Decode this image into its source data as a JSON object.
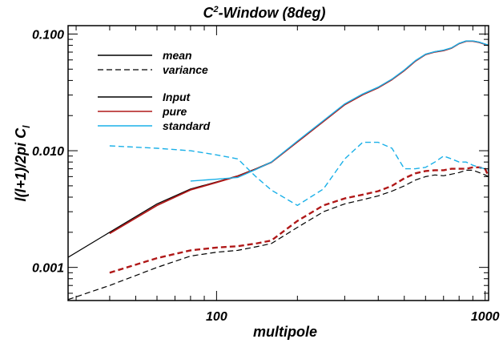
{
  "chart_data": {
    "type": "line",
    "title_prefix": "C",
    "title_sup": "2",
    "title_suffix": "-Window (8deg)",
    "xlabel": "multipole",
    "ylabel_main": "l(l+1)/2pi C",
    "ylabel_sub": "l",
    "x_scale": "log",
    "y_scale": "log",
    "xlim": [
      28,
      1030
    ],
    "ylim": [
      0.00052,
      0.118
    ],
    "x_ticks": [
      {
        "v": 100,
        "label": "100"
      },
      {
        "v": 1000,
        "label": "1000"
      }
    ],
    "y_ticks": [
      {
        "v": 0.001,
        "label": "0.001"
      },
      {
        "v": 0.01,
        "label": "0.010"
      },
      {
        "v": 0.1,
        "label": "0.100"
      }
    ],
    "legend": {
      "position": "top-left",
      "entries": [
        {
          "label": "mean",
          "color": "#000000",
          "dash": "solid"
        },
        {
          "label": "variance",
          "color": "#000000",
          "dash": "dashed"
        },
        {
          "label": "Input",
          "color": "#000000",
          "dash": "solid"
        },
        {
          "label": "pure",
          "color": "#b01818",
          "dash": "solid"
        },
        {
          "label": "standard",
          "color": "#1ab0e8",
          "dash": "solid"
        }
      ]
    },
    "series": [
      {
        "name": "Input",
        "style": "mean",
        "color": "#000000",
        "dash": "solid",
        "width": 1.2,
        "x": [
          28,
          40,
          60,
          80,
          100,
          120,
          140,
          160,
          200,
          250,
          300,
          350,
          400,
          450,
          500,
          550,
          600,
          650,
          700,
          750,
          800,
          850,
          900,
          950,
          1030
        ],
        "y": [
          0.00122,
          0.002,
          0.0035,
          0.0047,
          0.0054,
          0.0061,
          0.007,
          0.008,
          0.012,
          0.018,
          0.025,
          0.0305,
          0.035,
          0.041,
          0.049,
          0.059,
          0.067,
          0.0705,
          0.0725,
          0.076,
          0.083,
          0.087,
          0.087,
          0.085,
          0.08
        ]
      },
      {
        "name": "pure",
        "style": "mean",
        "color": "#b01818",
        "dash": "solid",
        "width": 1.8,
        "x": [
          40,
          60,
          80,
          100,
          120,
          140,
          160,
          200,
          250,
          300,
          350,
          400,
          450,
          500,
          550,
          600,
          650,
          700,
          750,
          800,
          850,
          900,
          950,
          1030
        ],
        "y": [
          0.00195,
          0.0034,
          0.00462,
          0.00535,
          0.00605,
          0.00695,
          0.00795,
          0.0119,
          0.0178,
          0.0248,
          0.0302,
          0.0347,
          0.0407,
          0.0487,
          0.0587,
          0.0668,
          0.0702,
          0.0722,
          0.0758,
          0.0828,
          0.0868,
          0.0868,
          0.0848,
          0.0798
        ]
      },
      {
        "name": "standard",
        "style": "mean",
        "color": "#1ab0e8",
        "dash": "solid",
        "width": 1.4,
        "x": [
          80,
          100,
          120,
          140,
          160,
          200,
          250,
          300,
          350,
          400,
          450,
          500,
          550,
          600,
          650,
          700,
          750,
          800,
          850,
          900,
          950,
          1030
        ],
        "y": [
          0.0055,
          0.0057,
          0.0059,
          0.0069,
          0.008,
          0.0121,
          0.0181,
          0.0252,
          0.0306,
          0.0351,
          0.0411,
          0.0492,
          0.0592,
          0.0672,
          0.0707,
          0.0727,
          0.0762,
          0.0832,
          0.0872,
          0.0872,
          0.0852,
          0.0802
        ]
      },
      {
        "name": "Input",
        "style": "variance",
        "color": "#000000",
        "dash": "dashed",
        "width": 1.2,
        "x": [
          28,
          40,
          60,
          80,
          100,
          120,
          140,
          160,
          200,
          250,
          300,
          350,
          400,
          450,
          500,
          550,
          600,
          650,
          700,
          750,
          800,
          850,
          900,
          950,
          1000,
          1030
        ],
        "y": [
          0.00053,
          0.0007,
          0.001,
          0.00125,
          0.00135,
          0.0014,
          0.0015,
          0.0016,
          0.0022,
          0.003,
          0.0035,
          0.0038,
          0.0041,
          0.0045,
          0.005,
          0.0056,
          0.006,
          0.0062,
          0.0061,
          0.0063,
          0.0065,
          0.0068,
          0.0068,
          0.0065,
          0.0062,
          0.006
        ]
      },
      {
        "name": "pure",
        "style": "variance",
        "color": "#b01818",
        "dash": "dashed",
        "width": 2.4,
        "x": [
          40,
          60,
          80,
          100,
          120,
          140,
          160,
          200,
          250,
          300,
          350,
          400,
          450,
          500,
          550,
          600,
          650,
          700,
          750,
          800,
          850,
          900,
          950,
          1000,
          1030
        ],
        "y": [
          0.0009,
          0.0012,
          0.0014,
          0.00148,
          0.00152,
          0.0016,
          0.0017,
          0.0025,
          0.0034,
          0.0039,
          0.0042,
          0.0045,
          0.005,
          0.0058,
          0.0064,
          0.0067,
          0.0068,
          0.0068,
          0.007,
          0.007,
          0.007,
          0.0072,
          0.0072,
          0.007,
          0.006
        ]
      },
      {
        "name": "standard",
        "style": "variance",
        "color": "#1ab0e8",
        "dash": "dashed",
        "width": 1.4,
        "x": [
          40,
          60,
          80,
          100,
          120,
          140,
          160,
          200,
          250,
          300,
          350,
          400,
          450,
          500,
          550,
          600,
          650,
          700,
          750,
          800,
          850,
          900,
          950,
          1000,
          1030
        ],
        "y": [
          0.011,
          0.0105,
          0.01,
          0.0092,
          0.0085,
          0.006,
          0.0046,
          0.0034,
          0.0047,
          0.0085,
          0.0118,
          0.0118,
          0.0105,
          0.007,
          0.007,
          0.0072,
          0.008,
          0.009,
          0.0085,
          0.008,
          0.008,
          0.0075,
          0.0072,
          0.007,
          0.0068
        ]
      }
    ]
  }
}
